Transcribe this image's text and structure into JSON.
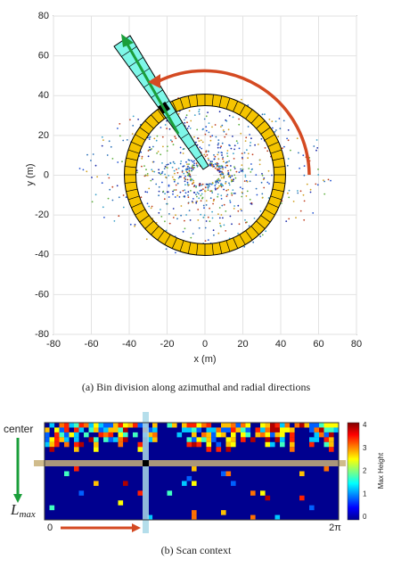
{
  "panel_a": {
    "x_label": "x (m)",
    "y_label": "y (m)",
    "x_ticks": [
      -80,
      -60,
      -40,
      -20,
      0,
      20,
      40,
      60,
      80
    ],
    "y_ticks": [
      80,
      60,
      40,
      20,
      0,
      -20,
      -40,
      -60,
      -80
    ],
    "caption": "(a)  Bin division along azimuthal and radial directions"
  },
  "panel_b": {
    "center_label": "center",
    "lmax_label": {
      "base": "L",
      "sub": "max"
    },
    "x_start": "0",
    "x_end": "2π",
    "colorbar_label": "Max Height",
    "colorbar_ticks": [
      4,
      3,
      2,
      1,
      0
    ],
    "caption": "(b)  Scan context"
  }
}
